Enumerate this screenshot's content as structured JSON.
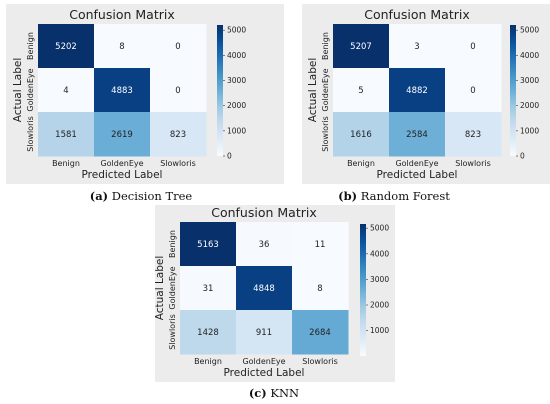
{
  "chart_data": [
    {
      "type": "heatmap",
      "title": "Confusion Matrix",
      "xlabel": "Predicted Label",
      "ylabel": "Actual Label",
      "x_categories": [
        "Benign",
        "GoldenEye",
        "Slowloris"
      ],
      "y_categories": [
        "Benign",
        "GoldenEye",
        "Slowloris"
      ],
      "values": [
        [
          5202,
          8,
          0
        ],
        [
          4,
          4883,
          0
        ],
        [
          1581,
          2619,
          823
        ]
      ],
      "colorbar_ticks": [
        0,
        1000,
        2000,
        3000,
        4000,
        5000
      ],
      "colorbar_range": [
        0,
        5207
      ],
      "colormap": [
        "#f7fbff",
        "#deebf7",
        "#c6dbef",
        "#9ecae1",
        "#6baed6",
        "#4292c6",
        "#2171b5",
        "#08519c",
        "#08306b"
      ],
      "caption_label": "(a)",
      "caption_text": "Decision Tree"
    },
    {
      "type": "heatmap",
      "title": "Confusion Matrix",
      "xlabel": "Predicted Label",
      "ylabel": "Actual Label",
      "x_categories": [
        "Benign",
        "GoldenEye",
        "Slowloris"
      ],
      "y_categories": [
        "Benign",
        "GoldenEye",
        "Slowloris"
      ],
      "values": [
        [
          5207,
          3,
          0
        ],
        [
          5,
          4882,
          0
        ],
        [
          1616,
          2584,
          823
        ]
      ],
      "colorbar_ticks": [
        0,
        1000,
        2000,
        3000,
        4000,
        5000
      ],
      "colorbar_range": [
        0,
        5207
      ],
      "colormap": [
        "#f7fbff",
        "#deebf7",
        "#c6dbef",
        "#9ecae1",
        "#6baed6",
        "#4292c6",
        "#2171b5",
        "#08519c",
        "#08306b"
      ],
      "caption_label": "(b)",
      "caption_text": "Random Forest"
    },
    {
      "type": "heatmap",
      "title": "Confusion Matrix",
      "xlabel": "Predicted Label",
      "ylabel": "Actual Label",
      "x_categories": [
        "Benign",
        "GoldenEye",
        "Slowloris"
      ],
      "y_categories": [
        "Benign",
        "GoldenEye",
        "Slowloris"
      ],
      "values": [
        [
          5163,
          36,
          11
        ],
        [
          31,
          4848,
          8
        ],
        [
          1428,
          911,
          2684
        ]
      ],
      "colorbar_ticks": [
        1000,
        2000,
        3000,
        4000,
        5000
      ],
      "colorbar_range": [
        8,
        5163
      ],
      "colormap": [
        "#f7fbff",
        "#deebf7",
        "#c6dbef",
        "#9ecae1",
        "#6baed6",
        "#4292c6",
        "#2171b5",
        "#08519c",
        "#08306b"
      ],
      "caption_label": "(c)",
      "caption_text": "KNN"
    }
  ]
}
